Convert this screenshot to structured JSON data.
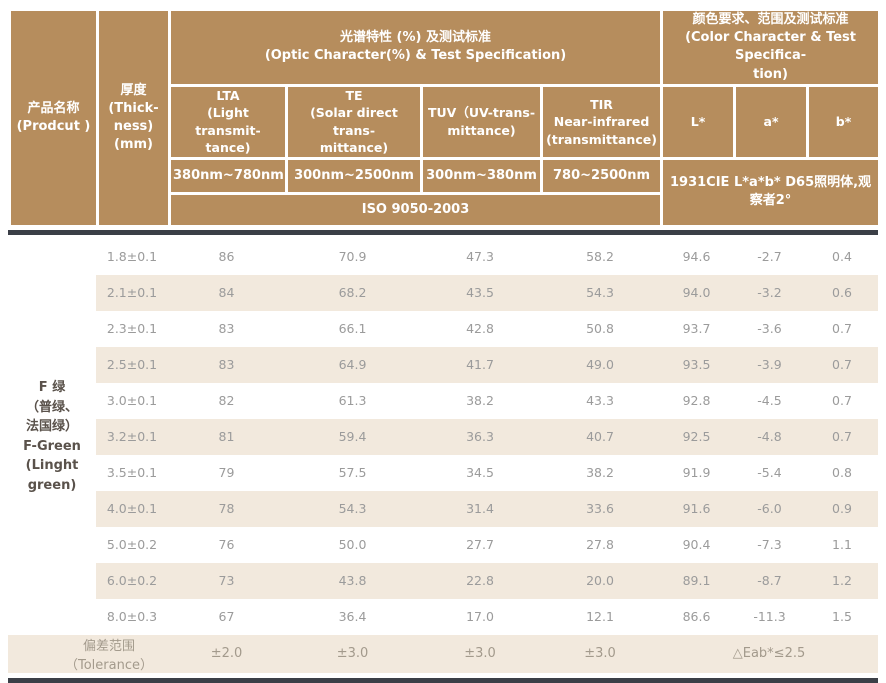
{
  "colors": {
    "header_brown": "#b68d5d",
    "stripe_beige": "#f2e9dd",
    "divider_dark": "#3b3f47",
    "header_text": "#ffffff",
    "body_text": "#9b9b9b",
    "product_text": "#5a524b",
    "tolerance_text": "#a39a8c"
  },
  "header": {
    "product": "产品名称\n(Prodcut )",
    "thickness": "厚度\n(Thick-\nness)\n(mm)",
    "optic_group": "光谱特性 (%) 及测试标准\n(Optic Character(%) & Test Specification)",
    "color_group": "颜色要求、范围及测试标准\n(Color Character & Test Specifica-\ntion)",
    "lta": "LTA\n(Light transmit-\ntance)",
    "te": "TE\n(Solar direct trans-\nmittance)",
    "tuv": "TUV（UV-trans-\nmittance)",
    "tir": "TIR\nNear-infrared\n(transmittance)",
    "l": "L*",
    "a": "a*",
    "b": "b*",
    "range_lta": "380nm~780nm",
    "range_te": "300nm~2500nm",
    "range_tuv": "300nm~380nm",
    "range_tir": "780~2500nm",
    "iso": "ISO 9050-2003",
    "cie": "1931CIE L*a*b* D65照明体,观察者2°"
  },
  "product_name": "F 绿\n（普绿、\n法国绿）\nF-Green\n(Linght\ngreen)",
  "rows": [
    {
      "thickness": "1.8±0.1",
      "lta": "86",
      "te": "70.9",
      "tuv": "47.3",
      "tir": "58.2",
      "l": "94.6",
      "a": "-2.7",
      "b": "0.4"
    },
    {
      "thickness": "2.1±0.1",
      "lta": "84",
      "te": "68.2",
      "tuv": "43.5",
      "tir": "54.3",
      "l": "94.0",
      "a": "-3.2",
      "b": "0.6"
    },
    {
      "thickness": "2.3±0.1",
      "lta": "83",
      "te": "66.1",
      "tuv": "42.8",
      "tir": "50.8",
      "l": "93.7",
      "a": "-3.6",
      "b": "0.7"
    },
    {
      "thickness": "2.5±0.1",
      "lta": "83",
      "te": "64.9",
      "tuv": "41.7",
      "tir": "49.0",
      "l": "93.5",
      "a": "-3.9",
      "b": "0.7"
    },
    {
      "thickness": "3.0±0.1",
      "lta": "82",
      "te": "61.3",
      "tuv": "38.2",
      "tir": "43.3",
      "l": "92.8",
      "a": "-4.5",
      "b": "0.7"
    },
    {
      "thickness": "3.2±0.1",
      "lta": "81",
      "te": "59.4",
      "tuv": "36.3",
      "tir": "40.7",
      "l": "92.5",
      "a": "-4.8",
      "b": "0.7"
    },
    {
      "thickness": "3.5±0.1",
      "lta": "79",
      "te": "57.5",
      "tuv": "34.5",
      "tir": "38.2",
      "l": "91.9",
      "a": "-5.4",
      "b": "0.8"
    },
    {
      "thickness": "4.0±0.1",
      "lta": "78",
      "te": "54.3",
      "tuv": "31.4",
      "tir": "33.6",
      "l": "91.6",
      "a": "-6.0",
      "b": "0.9"
    },
    {
      "thickness": "5.0±0.2",
      "lta": "76",
      "te": "50.0",
      "tuv": "27.7",
      "tir": "27.8",
      "l": "90.4",
      "a": "-7.3",
      "b": "1.1"
    },
    {
      "thickness": "6.0±0.2",
      "lta": "73",
      "te": "43.8",
      "tuv": "22.8",
      "tir": "20.0",
      "l": "89.1",
      "a": "-8.7",
      "b": "1.2"
    },
    {
      "thickness": "8.0±0.3",
      "lta": "67",
      "te": "36.4",
      "tuv": "17.0",
      "tir": "12.1",
      "l": "86.6",
      "a": "-11.3",
      "b": "1.5"
    }
  ],
  "tolerance": {
    "label": "偏差范围（Tolerance）",
    "lta": "±2.0",
    "te": "±3.0",
    "tuv": "±3.0",
    "tir": "±3.0",
    "eab": "△Eab*≤2.5"
  }
}
